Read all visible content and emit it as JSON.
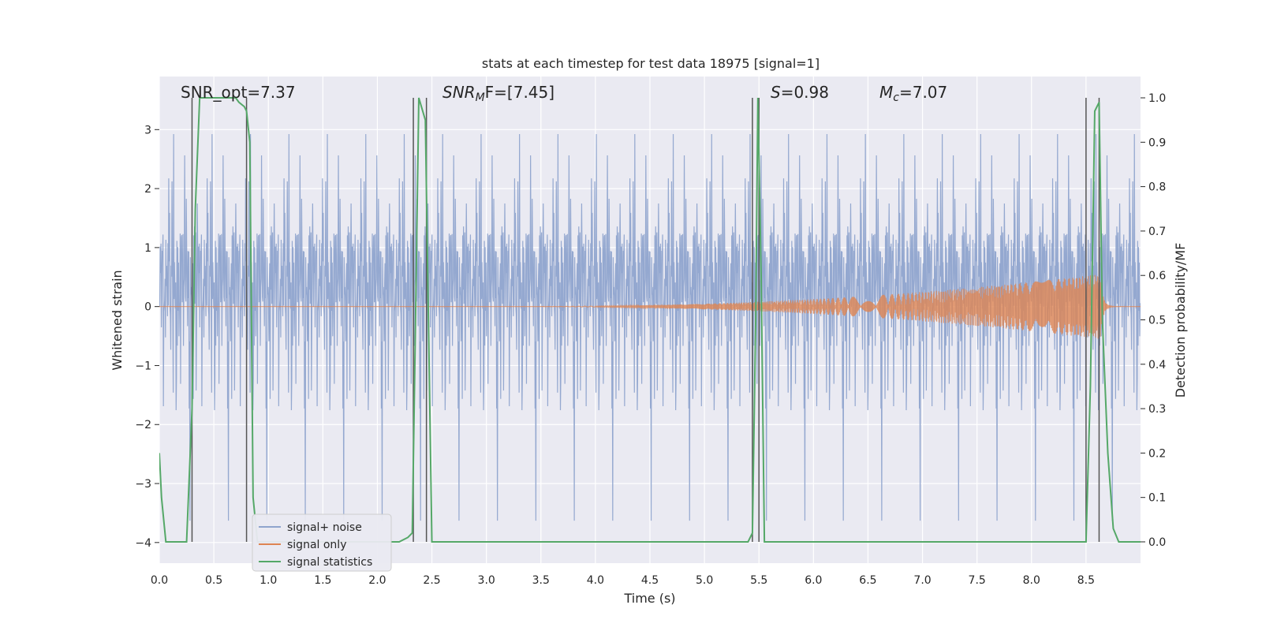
{
  "chart_data": {
    "type": "line",
    "title": "stats at each timestep for test data 18975 [signal=1]",
    "xlabel": "Time (s)",
    "ylabel_left": "Whitened strain",
    "ylabel_right": "Detection probability/MF",
    "xlim": [
      0.0,
      9.0
    ],
    "ylim_left": [
      -4.35,
      3.9
    ],
    "ylim_right": [
      -0.048,
      1.048
    ],
    "xticks": [
      "0.0",
      "0.5",
      "1.0",
      "1.5",
      "2.0",
      "2.5",
      "3.0",
      "3.5",
      "4.0",
      "4.5",
      "5.0",
      "5.5",
      "6.0",
      "6.5",
      "7.0",
      "7.5",
      "8.0",
      "8.5"
    ],
    "yticks_left": [
      "−4",
      "−3",
      "−2",
      "−1",
      "0",
      "1",
      "2",
      "3"
    ],
    "yticks_right": [
      "0.0",
      "0.1",
      "0.2",
      "0.3",
      "0.4",
      "0.5",
      "0.6",
      "0.7",
      "0.8",
      "0.9",
      "1.0"
    ],
    "grid": true,
    "legend_position": "bottom-left",
    "annotations": {
      "snr_opt": "SNR_opt=7.37",
      "snr_mf_base": "SNR",
      "snr_mf_sub": "M",
      "snr_mf_rest": "F=[7.45]",
      "s_var": "S",
      "s_rest": "=0.98",
      "mc_base": "M",
      "mc_sub": "c",
      "mc_rest": "=7.07"
    },
    "series": [
      {
        "name": "signal+ noise",
        "color": "#8fa4cd",
        "kind": "noise",
        "sigma": 1.0,
        "extreme_max": 3.3,
        "extreme_min": -3.8
      },
      {
        "name": "signal only",
        "color": "#dd8452",
        "kind": "chirp",
        "merger_time": 8.63,
        "peak_amplitude": 0.55
      },
      {
        "name": "signal statistics",
        "color": "#55a868",
        "kind": "probability",
        "x": [
          0.0,
          0.02,
          0.06,
          0.25,
          0.3,
          0.33,
          0.37,
          0.4,
          0.5,
          0.6,
          0.7,
          0.73,
          0.78,
          0.8,
          0.83,
          0.86,
          0.9,
          1.0,
          1.2,
          2.0,
          2.2,
          2.28,
          2.32,
          2.35,
          2.38,
          2.44,
          2.5,
          2.8,
          3.5,
          5.0,
          5.4,
          5.44,
          5.47,
          5.49,
          5.52,
          5.55,
          5.6,
          6.0,
          7.0,
          8.0,
          8.5,
          8.54,
          8.58,
          8.62,
          8.65,
          8.7,
          8.75,
          8.8,
          8.9,
          9.0
        ],
        "y": [
          0.2,
          0.1,
          0.0,
          0.0,
          0.3,
          0.75,
          1.0,
          1.0,
          1.0,
          1.0,
          1.0,
          0.99,
          0.98,
          0.97,
          0.9,
          0.1,
          0.0,
          0.0,
          0.0,
          0.0,
          0.0,
          0.01,
          0.02,
          0.5,
          1.0,
          0.95,
          0.0,
          0.0,
          0.0,
          0.0,
          0.0,
          0.02,
          0.5,
          1.0,
          0.6,
          0.0,
          0.0,
          0.0,
          0.0,
          0.0,
          0.0,
          0.35,
          0.97,
          0.99,
          0.5,
          0.2,
          0.03,
          0.0,
          0.0,
          0.0
        ]
      },
      {
        "name": "vertical markers",
        "color": "#555555",
        "kind": "vlines",
        "x": [
          0.3,
          0.8,
          2.33,
          2.45,
          5.44,
          5.5,
          8.5,
          8.62
        ]
      }
    ]
  }
}
